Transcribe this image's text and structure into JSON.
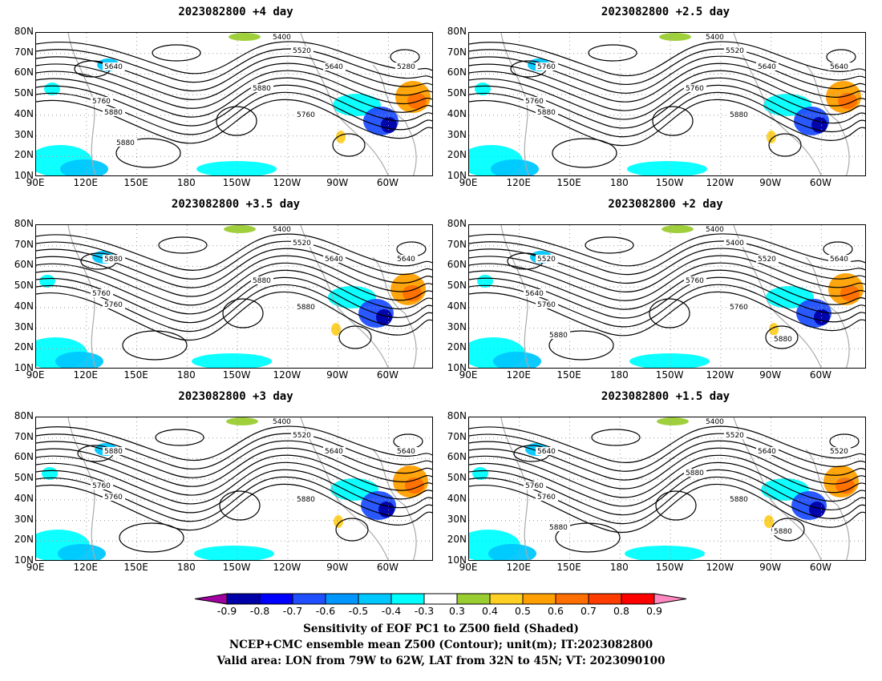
{
  "panels": [
    {
      "title": "2023082800 +4 day",
      "contour_labels": [
        "5400",
        "5520",
        "5640",
        "5280",
        "5640",
        "5760",
        "5880",
        "5760",
        "5880",
        "5880"
      ]
    },
    {
      "title": "2023082800 +2.5 day",
      "contour_labels": [
        "5400",
        "5520",
        "5640",
        "5640",
        "5760",
        "5760",
        "5880",
        "5880",
        "5760"
      ]
    },
    {
      "title": "2023082800 +3.5 day",
      "contour_labels": [
        "5400",
        "5520",
        "5640",
        "5640",
        "5880",
        "5760",
        "5760",
        "5880",
        "5880"
      ]
    },
    {
      "title": "2023082800 +2 day",
      "contour_labels": [
        "5400",
        "5400",
        "5520",
        "5640",
        "5520",
        "5640",
        "5760",
        "5760",
        "5760",
        "5880",
        "5880"
      ]
    },
    {
      "title": "2023082800 +3 day",
      "contour_labels": [
        "5400",
        "5520",
        "5640",
        "5640",
        "5880",
        "5760",
        "5760",
        "5880"
      ]
    },
    {
      "title": "2023082800 +1.5 day",
      "contour_labels": [
        "5400",
        "5520",
        "5640",
        "5520",
        "5640",
        "5760",
        "5760",
        "5880",
        "5880",
        "5880",
        "5880"
      ]
    }
  ],
  "lon_ticks": [
    "90E",
    "120E",
    "150E",
    "180",
    "150W",
    "120W",
    "90W",
    "60W"
  ],
  "lat_ticks": [
    "80N",
    "70N",
    "60N",
    "50N",
    "40N",
    "30N",
    "20N",
    "10N"
  ],
  "colorbar": {
    "ticks": [
      "-0.9",
      "-0.8",
      "-0.7",
      "-0.6",
      "-0.5",
      "-0.4",
      "-0.3",
      "0.3",
      "0.4",
      "0.5",
      "0.6",
      "0.7",
      "0.8",
      "0.9"
    ],
    "colors": [
      "#a0009f",
      "#0000a8",
      "#0000ff",
      "#1f4fff",
      "#0096ff",
      "#00c8ff",
      "#00ffff",
      "#ffffff",
      "#9acd32",
      "#ffd024",
      "#ffa000",
      "#ff6e00",
      "#ff3c00",
      "#ff0000",
      "#ff88c0"
    ]
  },
  "caption": {
    "line1": "Sensitivity of EOF PC1 to Z500 field (Shaded)",
    "line2": "NCEP+CMC ensemble mean Z500 (Contour); unit(m); IT:2023082800",
    "line3": "Valid area: LON from 79W to 62W, LAT from 32N to 45N; VT: 2023090100"
  }
}
